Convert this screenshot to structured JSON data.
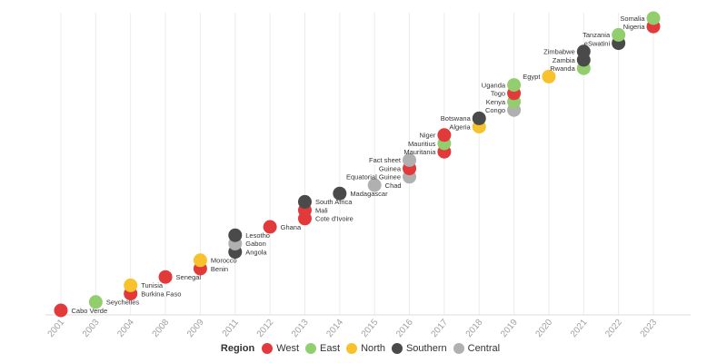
{
  "chart_data": {
    "type": "scatter",
    "categories": [
      "2001",
      "2003",
      "2004",
      "2008",
      "2009",
      "2011",
      "2012",
      "2013",
      "2014",
      "2015",
      "2016",
      "2017",
      "2018",
      "2019",
      "2020",
      "2021",
      "2022",
      "2023"
    ],
    "colors": {
      "West": "#e23a3a",
      "East": "#93ce6e",
      "North": "#f8c22c",
      "Southern": "#4a4a4a",
      "Central": "#b0b0b0"
    },
    "legend": {
      "title": "Region",
      "items": [
        {
          "label": "West",
          "color": "#e23a3a"
        },
        {
          "label": "East",
          "color": "#93ce6e"
        },
        {
          "label": "North",
          "color": "#f8c22c"
        },
        {
          "label": "Southern",
          "color": "#4a4a4a"
        },
        {
          "label": "Central",
          "color": "#b0b0b0"
        }
      ],
      "placement": "bottom"
    },
    "y_order": [
      "Cabo Verde",
      "Seychelles",
      "Burkina Faso",
      "Tunisia",
      "Senegal",
      "Benin",
      "Morocco",
      "Angola",
      "Gabon",
      "Lesotho",
      "Ghana",
      "Cote d'Ivoire",
      "Mali",
      "South Africa",
      "Madagascar",
      "Chad",
      "Equatorial Guinee",
      "Guinea",
      "Fact sheet",
      "Mauritania",
      "Mauritius",
      "Niger",
      "Algeria",
      "Botswana",
      "Congo",
      "Kenya",
      "Togo",
      "Uganda",
      "Egypt",
      "Rwanda",
      "Zambia",
      "Zimbabwe",
      "eSwatini",
      "Tanzania",
      "Nigeria",
      "Somalia"
    ],
    "points": [
      {
        "country": "Cabo Verde",
        "year": "2001",
        "region": "West"
      },
      {
        "country": "Seychelles",
        "year": "2003",
        "region": "East"
      },
      {
        "country": "Burkina Faso",
        "year": "2004",
        "region": "West"
      },
      {
        "country": "Tunisia",
        "year": "2004",
        "region": "North"
      },
      {
        "country": "Senegal",
        "year": "2008",
        "region": "West"
      },
      {
        "country": "Benin",
        "year": "2009",
        "region": "West"
      },
      {
        "country": "Morocco",
        "year": "2009",
        "region": "North"
      },
      {
        "country": "Angola",
        "year": "2011",
        "region": "Southern"
      },
      {
        "country": "Gabon",
        "year": "2011",
        "region": "Central"
      },
      {
        "country": "Lesotho",
        "year": "2011",
        "region": "Southern"
      },
      {
        "country": "Ghana",
        "year": "2012",
        "region": "West"
      },
      {
        "country": "Cote d'Ivoire",
        "year": "2013",
        "region": "West"
      },
      {
        "country": "Mali",
        "year": "2013",
        "region": "West"
      },
      {
        "country": "South Africa",
        "year": "2013",
        "region": "Southern"
      },
      {
        "country": "Madagascar",
        "year": "2014",
        "region": "Southern"
      },
      {
        "country": "Chad",
        "year": "2015",
        "region": "Central"
      },
      {
        "country": "Equatorial Guinee",
        "year": "2016",
        "region": "Central"
      },
      {
        "country": "Guinea",
        "year": "2016",
        "region": "West"
      },
      {
        "country": "Fact sheet",
        "year": "2016",
        "region": "Central"
      },
      {
        "country": "Mauritania",
        "year": "2017",
        "region": "West"
      },
      {
        "country": "Mauritius",
        "year": "2017",
        "region": "East"
      },
      {
        "country": "Niger",
        "year": "2017",
        "region": "West"
      },
      {
        "country": "Algeria",
        "year": "2018",
        "region": "North"
      },
      {
        "country": "Botswana",
        "year": "2018",
        "region": "Southern"
      },
      {
        "country": "Congo",
        "year": "2019",
        "region": "Central"
      },
      {
        "country": "Kenya",
        "year": "2019",
        "region": "East"
      },
      {
        "country": "Togo",
        "year": "2019",
        "region": "West"
      },
      {
        "country": "Uganda",
        "year": "2019",
        "region": "East"
      },
      {
        "country": "Egypt",
        "year": "2020",
        "region": "North"
      },
      {
        "country": "Rwanda",
        "year": "2021",
        "region": "East"
      },
      {
        "country": "Zambia",
        "year": "2021",
        "region": "Southern"
      },
      {
        "country": "Zimbabwe",
        "year": "2021",
        "region": "Southern"
      },
      {
        "country": "eSwatini",
        "year": "2022",
        "region": "Southern"
      },
      {
        "country": "Tanzania",
        "year": "2022",
        "region": "East"
      },
      {
        "country": "Nigeria",
        "year": "2023",
        "region": "West"
      },
      {
        "country": "Somalia",
        "year": "2023",
        "region": "East"
      }
    ],
    "grid": true
  }
}
